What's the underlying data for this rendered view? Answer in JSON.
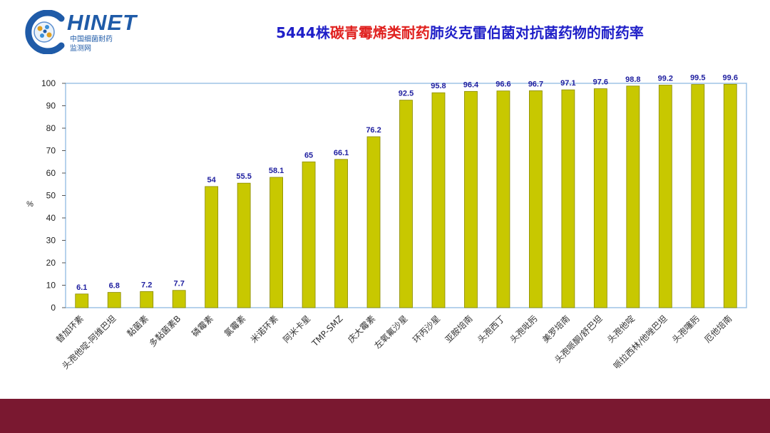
{
  "header": {
    "logo_text": "HINET",
    "logo_sub1": "中国细菌耐药",
    "logo_sub2": "监测网",
    "title_part1": "5444株",
    "title_part2": "碳青霉烯类耐药",
    "title_part3": "肺炎克雷伯菌对抗菌药物的耐药率"
  },
  "colors": {
    "bar": "#C8C800",
    "bar_edge": "#8A8A00",
    "grid": "#9DC3E6",
    "label": "#2020A0",
    "footer": "#7A1830"
  },
  "chart_data": {
    "type": "bar",
    "ylabel": "%",
    "ylim": [
      0,
      100
    ],
    "yticks": [
      0,
      10,
      20,
      30,
      40,
      50,
      60,
      70,
      80,
      90,
      100
    ],
    "grid": false,
    "categories": [
      "替加环素",
      "头孢他啶-阿维巴坦",
      "黏菌素",
      "多黏菌素B",
      "磷霉素",
      "氯霉素",
      "米诺环素",
      "阿米卡星",
      "TMP-SMZ",
      "庆大霉素",
      "左氧氟沙星",
      "环丙沙星",
      "亚胺培南",
      "头孢西丁",
      "头孢吡肟",
      "美罗培南",
      "头孢哌酮/舒巴坦",
      "头孢他啶",
      "哌拉西林/他唑巴坦",
      "头孢噻肟",
      "厄他培南"
    ],
    "values": [
      6.1,
      6.8,
      7.2,
      7.7,
      54,
      55.5,
      58.1,
      65,
      66.1,
      76.2,
      92.5,
      95.8,
      96.4,
      96.6,
      96.7,
      97.1,
      97.6,
      98.8,
      99.2,
      99.5,
      99.6
    ]
  }
}
